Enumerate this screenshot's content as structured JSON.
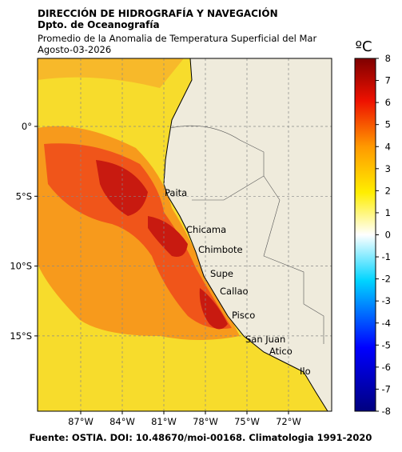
{
  "header": {
    "institution": "DIRECCIÓN DE HIDROGRAFÍA Y NAVEGACIÓN",
    "department": "Dpto. de Oceanografía",
    "title": "Promedio de la Anomalia de Temperatura Superficial del Mar",
    "date": "Agosto-03-2026"
  },
  "map": {
    "lon_ticks": [
      "87°W",
      "84°W",
      "81°W",
      "78°W",
      "75°W",
      "72°W"
    ],
    "lat_ticks": [
      "0°",
      "5°S",
      "10°S",
      "15°S"
    ],
    "places": [
      "Paita",
      "Chicama",
      "Chimbote",
      "Supe",
      "Callao",
      "Pisco",
      "San Juan",
      "Atico",
      "Ilo"
    ]
  },
  "colorbar": {
    "unit": "ºC",
    "ticks": [
      8,
      7,
      6,
      5,
      4,
      3,
      2,
      1,
      0,
      -1,
      -2,
      -3,
      -4,
      -5,
      -6,
      -7,
      -8
    ]
  },
  "footer": "Fuente: OSTIA. DOI: 10.48670/moi-00168. Climatologia 1991-2020"
}
